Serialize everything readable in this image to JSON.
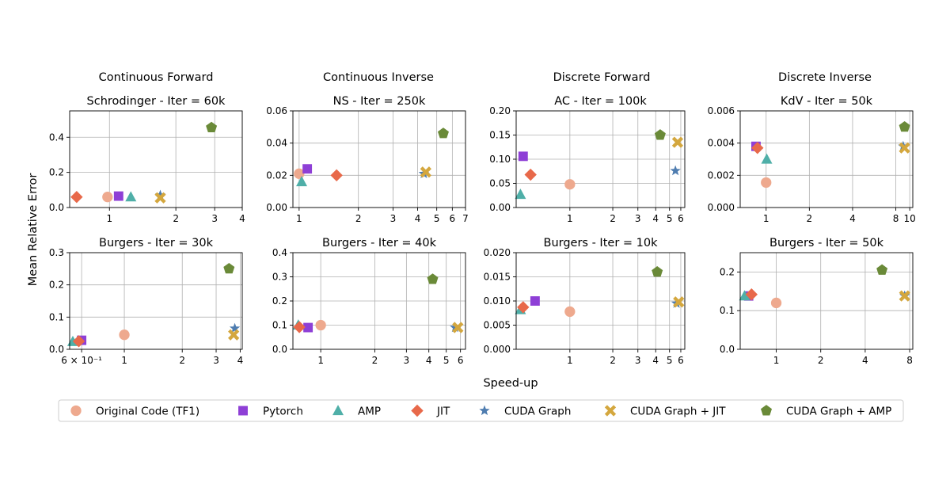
{
  "figure": {
    "xlabel": "Speed-up",
    "ylabel": "Mean Relative Error",
    "column_titles": [
      "Continuous Forward",
      "Continuous Inverse",
      "Discrete Forward",
      "Discrete Inverse"
    ]
  },
  "legend": [
    {
      "name": "Original Code (TF1)",
      "marker": "circle",
      "color": "#EEA98E"
    },
    {
      "name": "Pytorch",
      "marker": "square",
      "color": "#8E3FD6"
    },
    {
      "name": "AMP",
      "marker": "triangle",
      "color": "#4FAFA8"
    },
    {
      "name": "JIT",
      "marker": "diamond",
      "color": "#E8694A"
    },
    {
      "name": "CUDA Graph",
      "marker": "star",
      "color": "#4F7DB0"
    },
    {
      "name": "CUDA Graph + JIT",
      "marker": "x",
      "color": "#D4A73E"
    },
    {
      "name": "CUDA Graph + AMP",
      "marker": "pentagon",
      "color": "#6A8A38"
    }
  ],
  "chart_data": [
    {
      "type": "scatter",
      "title": "Schrodinger - Iter = 60k",
      "xscale": "log",
      "xlim": [
        0.66,
        4.0
      ],
      "ylim": [
        0,
        0.55
      ],
      "xticks": [
        {
          "v": 1,
          "t": "1"
        },
        {
          "v": 2,
          "t": "2"
        },
        {
          "v": 3,
          "t": "3"
        },
        {
          "v": 4,
          "t": "4"
        }
      ],
      "yticks": [
        {
          "v": 0.0,
          "t": "0.0"
        },
        {
          "v": 0.2,
          "t": "0.2"
        },
        {
          "v": 0.4,
          "t": "0.4"
        }
      ],
      "points": [
        {
          "series": "Original Code (TF1)",
          "x": 0.98,
          "y": 0.06
        },
        {
          "series": "Pytorch",
          "x": 1.1,
          "y": 0.065
        },
        {
          "series": "AMP",
          "x": 1.25,
          "y": 0.06
        },
        {
          "series": "JIT",
          "x": 0.71,
          "y": 0.06
        },
        {
          "series": "CUDA Graph",
          "x": 1.7,
          "y": 0.07
        },
        {
          "series": "CUDA Graph + JIT",
          "x": 1.7,
          "y": 0.055
        },
        {
          "series": "CUDA Graph + AMP",
          "x": 2.9,
          "y": 0.455
        }
      ]
    },
    {
      "type": "scatter",
      "title": "NS - Iter = 250k",
      "xscale": "log",
      "xlim": [
        0.93,
        7.0
      ],
      "ylim": [
        0,
        0.06
      ],
      "xticks": [
        {
          "v": 1,
          "t": "1"
        },
        {
          "v": 2,
          "t": "2"
        },
        {
          "v": 3,
          "t": "3"
        },
        {
          "v": 4,
          "t": "4"
        },
        {
          "v": 5,
          "t": "5"
        },
        {
          "v": 6,
          "t": "6"
        },
        {
          "v": 7,
          "t": "7"
        }
      ],
      "yticks": [
        {
          "v": 0.0,
          "t": "0.00"
        },
        {
          "v": 0.02,
          "t": "0.02"
        },
        {
          "v": 0.04,
          "t": "0.04"
        },
        {
          "v": 0.06,
          "t": "0.06"
        }
      ],
      "points": [
        {
          "series": "Original Code (TF1)",
          "x": 1.0,
          "y": 0.021
        },
        {
          "series": "Pytorch",
          "x": 1.1,
          "y": 0.024
        },
        {
          "series": "AMP",
          "x": 1.03,
          "y": 0.016
        },
        {
          "series": "JIT",
          "x": 1.55,
          "y": 0.02
        },
        {
          "series": "CUDA Graph",
          "x": 4.3,
          "y": 0.021
        },
        {
          "series": "CUDA Graph + JIT",
          "x": 4.4,
          "y": 0.022
        },
        {
          "series": "CUDA Graph + AMP",
          "x": 5.4,
          "y": 0.046
        }
      ]
    },
    {
      "type": "scatter",
      "title": "AC - Iter = 100k",
      "xscale": "log",
      "xlim": [
        0.42,
        6.4
      ],
      "ylim": [
        0,
        0.2
      ],
      "xticks": [
        {
          "v": 1,
          "t": "1"
        },
        {
          "v": 2,
          "t": "2"
        },
        {
          "v": 3,
          "t": "3"
        },
        {
          "v": 4,
          "t": "4"
        },
        {
          "v": 5,
          "t": "5"
        },
        {
          "v": 6,
          "t": "6"
        }
      ],
      "yticks": [
        {
          "v": 0.0,
          "t": "0.00"
        },
        {
          "v": 0.05,
          "t": "0.05"
        },
        {
          "v": 0.1,
          "t": "0.10"
        },
        {
          "v": 0.15,
          "t": "0.15"
        },
        {
          "v": 0.2,
          "t": "0.20"
        }
      ],
      "points": [
        {
          "series": "Original Code (TF1)",
          "x": 1.0,
          "y": 0.048
        },
        {
          "series": "Pytorch",
          "x": 0.47,
          "y": 0.106
        },
        {
          "series": "AMP",
          "x": 0.45,
          "y": 0.027
        },
        {
          "series": "JIT",
          "x": 0.53,
          "y": 0.068
        },
        {
          "series": "CUDA Graph",
          "x": 5.5,
          "y": 0.076
        },
        {
          "series": "CUDA Graph + JIT",
          "x": 5.7,
          "y": 0.135
        },
        {
          "series": "CUDA Graph + AMP",
          "x": 4.3,
          "y": 0.15
        }
      ]
    },
    {
      "type": "scatter",
      "title": "KdV - Iter = 50k",
      "xscale": "log",
      "xlim": [
        0.66,
        10.5
      ],
      "ylim": [
        0,
        0.006
      ],
      "xticks": [
        {
          "v": 1,
          "t": "1"
        },
        {
          "v": 2,
          "t": "2"
        },
        {
          "v": 4,
          "t": "4"
        },
        {
          "v": 8,
          "t": "8"
        },
        {
          "v": 10,
          "t": "10"
        }
      ],
      "yticks": [
        {
          "v": 0.0,
          "t": "0.000"
        },
        {
          "v": 0.002,
          "t": "0.002"
        },
        {
          "v": 0.004,
          "t": "0.004"
        },
        {
          "v": 0.006,
          "t": "0.006"
        }
      ],
      "points": [
        {
          "series": "Original Code (TF1)",
          "x": 1.0,
          "y": 0.00155
        },
        {
          "series": "Pytorch",
          "x": 0.85,
          "y": 0.0038
        },
        {
          "series": "AMP",
          "x": 1.01,
          "y": 0.003
        },
        {
          "series": "JIT",
          "x": 0.87,
          "y": 0.0037
        },
        {
          "series": "CUDA Graph",
          "x": 9.0,
          "y": 0.0038
        },
        {
          "series": "CUDA Graph + JIT",
          "x": 9.2,
          "y": 0.0037
        },
        {
          "series": "CUDA Graph + AMP",
          "x": 9.2,
          "y": 0.005
        }
      ]
    },
    {
      "type": "scatter",
      "title": "Burgers - Iter = 30k",
      "xscale": "log",
      "xlim": [
        0.52,
        4.1
      ],
      "ylim": [
        0,
        0.3
      ],
      "xticks": [
        {
          "v": 0.6,
          "t": "6 × 10⁻¹"
        },
        {
          "v": 1,
          "t": "1"
        },
        {
          "v": 2,
          "t": "2"
        },
        {
          "v": 3,
          "t": "3"
        },
        {
          "v": 4,
          "t": "4"
        }
      ],
      "yticks": [
        {
          "v": 0.0,
          "t": "0.0"
        },
        {
          "v": 0.1,
          "t": "0.1"
        },
        {
          "v": 0.2,
          "t": "0.2"
        },
        {
          "v": 0.3,
          "t": "0.3"
        }
      ],
      "points": [
        {
          "series": "Original Code (TF1)",
          "x": 1.0,
          "y": 0.045
        },
        {
          "series": "Pytorch",
          "x": 0.6,
          "y": 0.028
        },
        {
          "series": "AMP",
          "x": 0.54,
          "y": 0.024
        },
        {
          "series": "JIT",
          "x": 0.58,
          "y": 0.025
        },
        {
          "series": "CUDA Graph",
          "x": 3.75,
          "y": 0.065
        },
        {
          "series": "CUDA Graph + JIT",
          "x": 3.7,
          "y": 0.045
        },
        {
          "series": "CUDA Graph + AMP",
          "x": 3.5,
          "y": 0.25
        }
      ]
    },
    {
      "type": "scatter",
      "title": "Burgers - Iter = 40k",
      "xscale": "log",
      "xlim": [
        0.7,
        6.4
      ],
      "ylim": [
        0,
        0.4
      ],
      "xticks": [
        {
          "v": 1,
          "t": "1"
        },
        {
          "v": 2,
          "t": "2"
        },
        {
          "v": 3,
          "t": "3"
        },
        {
          "v": 4,
          "t": "4"
        },
        {
          "v": 5,
          "t": "5"
        },
        {
          "v": 6,
          "t": "6"
        }
      ],
      "yticks": [
        {
          "v": 0.0,
          "t": "0.0"
        },
        {
          "v": 0.1,
          "t": "0.1"
        },
        {
          "v": 0.2,
          "t": "0.2"
        },
        {
          "v": 0.3,
          "t": "0.3"
        },
        {
          "v": 0.4,
          "t": "0.4"
        }
      ],
      "points": [
        {
          "series": "Original Code (TF1)",
          "x": 1.0,
          "y": 0.1
        },
        {
          "series": "Pytorch",
          "x": 0.85,
          "y": 0.09
        },
        {
          "series": "AMP",
          "x": 0.75,
          "y": 0.1
        },
        {
          "series": "JIT",
          "x": 0.76,
          "y": 0.092
        },
        {
          "series": "CUDA Graph",
          "x": 5.6,
          "y": 0.09
        },
        {
          "series": "CUDA Graph + JIT",
          "x": 5.8,
          "y": 0.09
        },
        {
          "series": "CUDA Graph + AMP",
          "x": 4.2,
          "y": 0.29
        }
      ]
    },
    {
      "type": "scatter",
      "title": "Burgers - Iter = 10k",
      "xscale": "log",
      "xlim": [
        0.42,
        6.4
      ],
      "ylim": [
        0,
        0.02
      ],
      "xticks": [
        {
          "v": 1,
          "t": "1"
        },
        {
          "v": 2,
          "t": "2"
        },
        {
          "v": 3,
          "t": "3"
        },
        {
          "v": 4,
          "t": "4"
        },
        {
          "v": 5,
          "t": "5"
        },
        {
          "v": 6,
          "t": "6"
        }
      ],
      "yticks": [
        {
          "v": 0.0,
          "t": "0.000"
        },
        {
          "v": 0.005,
          "t": "0.005"
        },
        {
          "v": 0.01,
          "t": "0.010"
        },
        {
          "v": 0.015,
          "t": "0.015"
        },
        {
          "v": 0.02,
          "t": "0.020"
        }
      ],
      "points": [
        {
          "series": "Original Code (TF1)",
          "x": 1.0,
          "y": 0.0078
        },
        {
          "series": "Pytorch",
          "x": 0.57,
          "y": 0.01
        },
        {
          "series": "AMP",
          "x": 0.45,
          "y": 0.0082
        },
        {
          "series": "JIT",
          "x": 0.47,
          "y": 0.0087
        },
        {
          "series": "CUDA Graph",
          "x": 5.6,
          "y": 0.0095
        },
        {
          "series": "CUDA Graph + JIT",
          "x": 5.8,
          "y": 0.0098
        },
        {
          "series": "CUDA Graph + AMP",
          "x": 4.1,
          "y": 0.016
        }
      ]
    },
    {
      "type": "scatter",
      "title": "Burgers - Iter = 50k",
      "xscale": "log",
      "xlim": [
        0.57,
        8.4
      ],
      "ylim": [
        0,
        0.25
      ],
      "xticks": [
        {
          "v": 1,
          "t": "1"
        },
        {
          "v": 2,
          "t": "2"
        },
        {
          "v": 4,
          "t": "4"
        },
        {
          "v": 8,
          "t": "8"
        }
      ],
      "yticks": [
        {
          "v": 0.0,
          "t": "0.0"
        },
        {
          "v": 0.1,
          "t": "0.1"
        },
        {
          "v": 0.2,
          "t": "0.2"
        }
      ],
      "points": [
        {
          "series": "Original Code (TF1)",
          "x": 1.0,
          "y": 0.12
        },
        {
          "series": "Pytorch",
          "x": 0.65,
          "y": 0.138
        },
        {
          "series": "AMP",
          "x": 0.61,
          "y": 0.138
        },
        {
          "series": "JIT",
          "x": 0.68,
          "y": 0.142
        },
        {
          "series": "CUDA Graph",
          "x": 7.4,
          "y": 0.138
        },
        {
          "series": "CUDA Graph + JIT",
          "x": 7.4,
          "y": 0.138
        },
        {
          "series": "CUDA Graph + AMP",
          "x": 5.2,
          "y": 0.205
        }
      ]
    }
  ]
}
